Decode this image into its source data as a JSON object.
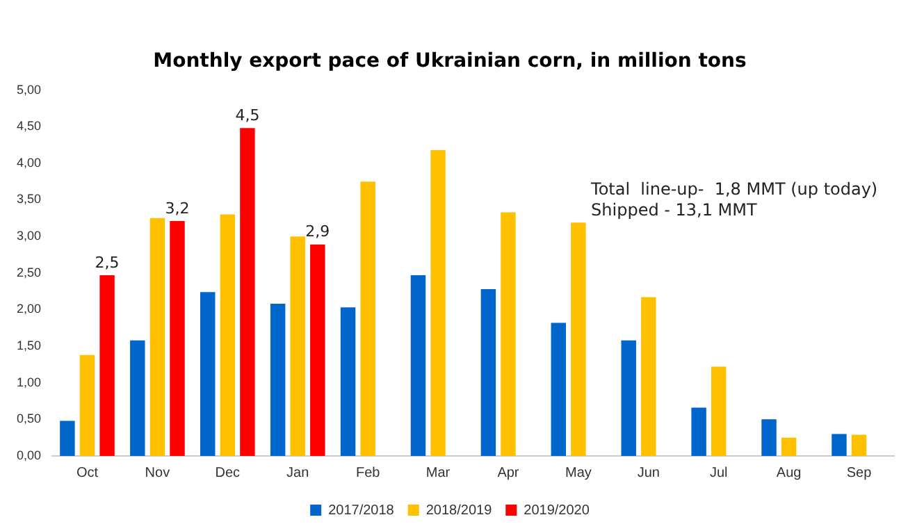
{
  "chart_data": {
    "type": "bar",
    "title": "Monthly export pace of Ukrainian corn, in million tons",
    "categories": [
      "Oct",
      "Nov",
      "Dec",
      "Jan",
      "Feb",
      "Mar",
      "Apr",
      "May",
      "Jun",
      "Jul",
      "Aug",
      "Sep"
    ],
    "series": [
      {
        "name": "2017/2018",
        "color": "#0066cc",
        "values": [
          0.48,
          1.58,
          2.24,
          2.08,
          2.03,
          2.47,
          2.28,
          1.82,
          1.58,
          0.66,
          0.5,
          0.3
        ]
      },
      {
        "name": "2018/2019",
        "color": "#ffc000",
        "values": [
          1.38,
          3.25,
          3.3,
          3.0,
          3.75,
          4.18,
          3.33,
          3.19,
          2.17,
          1.22,
          0.25,
          0.29
        ]
      },
      {
        "name": "2019/2020",
        "color": "#ff0000",
        "values": [
          2.47,
          3.21,
          4.48,
          2.89,
          null,
          null,
          null,
          null,
          null,
          null,
          null,
          null
        ],
        "value_labels": [
          "2,5",
          "3,2",
          "4,5",
          "2,9",
          null,
          null,
          null,
          null,
          null,
          null,
          null,
          null
        ]
      }
    ],
    "ylim": [
      0,
      5
    ],
    "yticks": [
      {
        "value": 0,
        "label": "0,00"
      },
      {
        "value": 0.5,
        "label": "0,50"
      },
      {
        "value": 1,
        "label": "1,00"
      },
      {
        "value": 1.5,
        "label": "1,50"
      },
      {
        "value": 2,
        "label": "2,00"
      },
      {
        "value": 2.5,
        "label": "2,50"
      },
      {
        "value": 3,
        "label": "3,00"
      },
      {
        "value": 3.5,
        "label": "3,50"
      },
      {
        "value": 4,
        "label": "4,00"
      },
      {
        "value": 4.5,
        "label": "4,50"
      },
      {
        "value": 5,
        "label": "5,00"
      }
    ],
    "grid": false,
    "legend": "bottom",
    "annotations": [
      "Total  line-up-  1,8 MMT (up today)",
      "Shipped - 13,1 MMT"
    ]
  }
}
